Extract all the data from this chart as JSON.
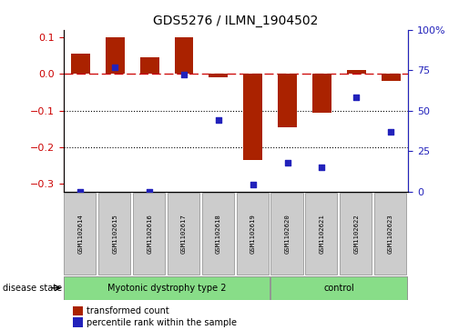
{
  "title": "GDS5276 / ILMN_1904502",
  "samples": [
    "GSM1102614",
    "GSM1102615",
    "GSM1102616",
    "GSM1102617",
    "GSM1102618",
    "GSM1102619",
    "GSM1102620",
    "GSM1102621",
    "GSM1102622",
    "GSM1102623"
  ],
  "bar_values": [
    0.055,
    0.1,
    0.045,
    0.1,
    -0.01,
    -0.235,
    -0.145,
    -0.105,
    0.01,
    -0.02
  ],
  "blue_values": [
    0.0,
    0.77,
    0.0,
    0.72,
    0.44,
    0.04,
    0.18,
    0.15,
    0.58,
    0.37
  ],
  "bar_color": "#aa2200",
  "blue_color": "#2222bb",
  "group1_label": "Myotonic dystrophy type 2",
  "group2_label": "control",
  "group1_count": 6,
  "group2_count": 4,
  "ylim_left": [
    -0.32,
    0.12
  ],
  "ylim_right": [
    0,
    100
  ],
  "yticks_left": [
    -0.3,
    -0.2,
    -0.1,
    0.0,
    0.1
  ],
  "yticks_right": [
    0,
    25,
    50,
    75,
    100
  ],
  "legend_items": [
    "transformed count",
    "percentile rank within the sample"
  ],
  "bg_color": "#ffffff",
  "green_color": "#88dd88",
  "gray_color": "#cccccc",
  "tick_color_left": "#cc0000",
  "tick_color_right": "#2222bb",
  "hline_y": 0.0,
  "dotted_lines": [
    -0.1,
    -0.2
  ],
  "bar_width": 0.55
}
